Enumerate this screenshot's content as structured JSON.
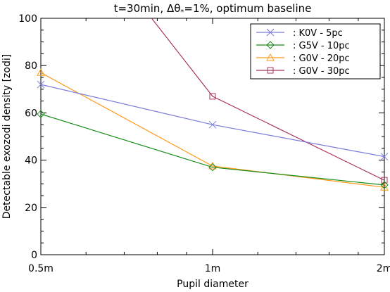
{
  "chart_data": {
    "type": "line",
    "title": "t=30min, Δθ",
    "title_sub": "*",
    "title_rest": "=1%, optimum baseline",
    "xlabel": "Pupil diameter",
    "ylabel": "Detectable exozodi density [zodi]",
    "x_scale": "log",
    "x_ticks": [
      0.5,
      1,
      2
    ],
    "x_tick_labels": [
      "0.5m",
      "1m",
      "2m"
    ],
    "xlim": [
      0.5,
      2
    ],
    "ylim": [
      0,
      100
    ],
    "y_ticks": [
      0,
      20,
      40,
      60,
      80,
      100
    ],
    "y_tick_labels": [
      "0",
      "20",
      "40",
      "60",
      "80",
      "100"
    ],
    "grid": false,
    "legend_position": "top-right",
    "series": [
      {
        "name": ": K0V - 5pc",
        "color": "#7b7bd8",
        "marker": "x",
        "x": [
          0.5,
          1,
          2
        ],
        "values": [
          72,
          55,
          41.5
        ]
      },
      {
        "name": ": G5V - 10pc",
        "color": "#1a8c1a",
        "marker": "diamond",
        "x": [
          0.5,
          1,
          2
        ],
        "values": [
          59.5,
          37,
          29.5
        ]
      },
      {
        "name": ": G0V - 20pc",
        "color": "#ff9a1a",
        "marker": "triangle",
        "x": [
          0.5,
          1,
          2
        ],
        "values": [
          77,
          37.5,
          28.5
        ]
      },
      {
        "name": ": G0V - 30pc",
        "color": "#a8345a",
        "marker": "square",
        "x": [
          0.5,
          1,
          2
        ],
        "values": [
          160,
          67,
          31.5
        ]
      }
    ]
  }
}
